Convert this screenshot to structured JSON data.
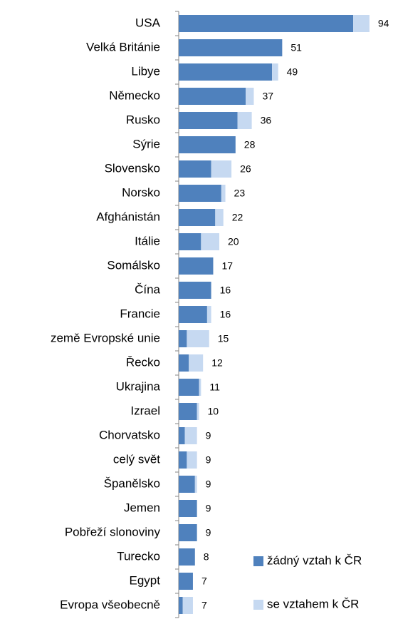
{
  "chart_data": {
    "type": "stacked-bar-horizontal",
    "categories": [
      "USA",
      "Velká Británie",
      "Libye",
      "Německo",
      "Rusko",
      "Sýrie",
      "Slovensko",
      "Norsko",
      "Afghánistán",
      "Itálie",
      "Somálsko",
      "Čína",
      "Francie",
      "země Evropské unie",
      "Řecko",
      "Ukrajina",
      "Izrael",
      "Chorvatsko",
      "celý svět",
      "Španělsko",
      "Jemen",
      "Pobřeží slonoviny",
      "Turecko",
      "Egypt",
      "Evropa všeobecně"
    ],
    "series": [
      {
        "name": "žádný vztah k ČR",
        "color": "#4f81bd",
        "values": [
          86,
          51,
          46,
          33,
          29,
          28,
          16,
          21,
          18,
          11,
          17,
          16,
          14,
          4,
          5,
          10,
          9,
          3,
          4,
          8,
          9,
          9,
          8,
          7,
          2
        ]
      },
      {
        "name": "se vztahem k ČR",
        "color": "#c6d9f1",
        "values": [
          8,
          0,
          3,
          4,
          7,
          0,
          10,
          2,
          4,
          9,
          0,
          0,
          2,
          11,
          7,
          1,
          1,
          6,
          5,
          1,
          0,
          0,
          0,
          0,
          5
        ]
      }
    ],
    "totals": [
      94,
      51,
      49,
      37,
      36,
      28,
      26,
      23,
      22,
      20,
      17,
      16,
      16,
      15,
      12,
      11,
      10,
      9,
      9,
      9,
      9,
      9,
      8,
      7,
      7
    ],
    "xlim": [
      0,
      100
    ],
    "legend": "bottom-right"
  }
}
